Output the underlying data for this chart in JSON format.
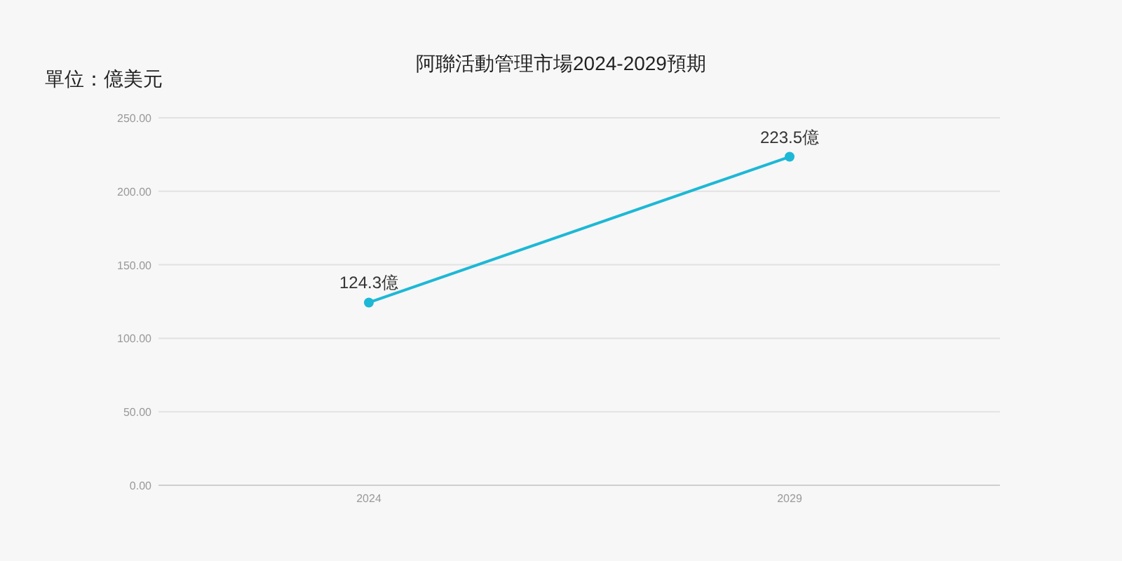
{
  "chart_data": {
    "type": "line",
    "title": "阿聯活動管理市場2024-2029預期",
    "ylabel": "單位：億美元",
    "categories": [
      "2024",
      "2029"
    ],
    "values": [
      124.3,
      223.5
    ],
    "value_labels": [
      "124.3億",
      "223.5億"
    ],
    "color": "#1db8d6",
    "ylim": [
      0,
      250
    ],
    "yticks": [
      {
        "value": 0,
        "label": "0.00"
      },
      {
        "value": 50,
        "label": "50.00"
      },
      {
        "value": 100,
        "label": "100.00"
      },
      {
        "value": 150,
        "label": "150.00"
      },
      {
        "value": 200,
        "label": "200.00"
      },
      {
        "value": 250,
        "label": "250.00"
      }
    ],
    "grid": "y",
    "marker": "circle",
    "line_style": "solid"
  }
}
